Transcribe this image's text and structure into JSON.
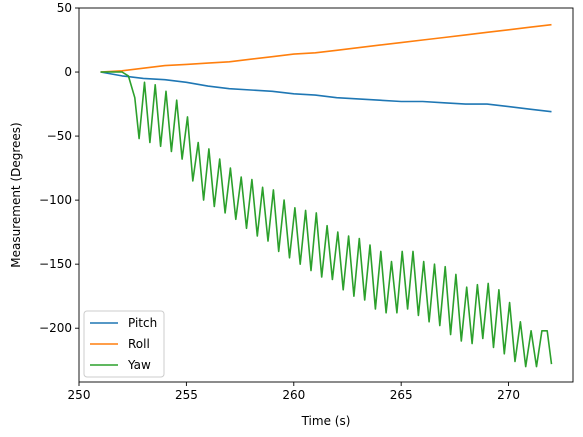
{
  "chart_data": {
    "type": "line",
    "xlabel": "Time (s)",
    "ylabel": "Measurement (Degrees)",
    "xlim": [
      250.0,
      273.0
    ],
    "ylim": [
      -242,
      50
    ],
    "xticks": [
      250,
      255,
      260,
      265,
      270
    ],
    "yticks": [
      50,
      0,
      -50,
      -100,
      -150,
      -200
    ],
    "legend_position": "lower-left",
    "grid": false,
    "series": [
      {
        "name": "Pitch",
        "color": "#1f77b4",
        "x": [
          251,
          252,
          253,
          254,
          255,
          256,
          257,
          258,
          259,
          260,
          261,
          262,
          263,
          264,
          265,
          266,
          267,
          268,
          269,
          270,
          271,
          272
        ],
        "y": [
          0,
          -3,
          -5,
          -6,
          -8,
          -11,
          -13,
          -14,
          -15,
          -17,
          -18,
          -20,
          -21,
          -22,
          -23,
          -23,
          -24,
          -25,
          -25,
          -27,
          -29,
          -31
        ]
      },
      {
        "name": "Roll",
        "color": "#ff7f0e",
        "x": [
          251,
          252,
          253,
          254,
          255,
          256,
          257,
          258,
          259,
          260,
          261,
          262,
          263,
          264,
          265,
          266,
          267,
          268,
          269,
          270,
          271,
          272
        ],
        "y": [
          0,
          1,
          3,
          5,
          6,
          7,
          8,
          10,
          12,
          14,
          15,
          17,
          19,
          21,
          23,
          25,
          27,
          29,
          31,
          33,
          35,
          37
        ]
      },
      {
        "name": "Yaw",
        "color": "#2ca02c",
        "x": [
          251,
          251.5,
          252,
          252.3,
          252.6,
          252.8,
          253.05,
          253.3,
          253.55,
          253.8,
          254.05,
          254.3,
          254.55,
          254.8,
          255.05,
          255.3,
          255.55,
          255.8,
          256.05,
          256.3,
          256.55,
          256.8,
          257.05,
          257.3,
          257.55,
          257.8,
          258.05,
          258.3,
          258.55,
          258.8,
          259.05,
          259.3,
          259.55,
          259.8,
          260.05,
          260.3,
          260.55,
          260.8,
          261.05,
          261.3,
          261.55,
          261.8,
          262.05,
          262.3,
          262.55,
          262.8,
          263.05,
          263.3,
          263.55,
          263.8,
          264.05,
          264.3,
          264.55,
          264.8,
          265.05,
          265.3,
          265.55,
          265.8,
          266.05,
          266.3,
          266.55,
          266.8,
          267.05,
          267.3,
          267.55,
          267.8,
          268.05,
          268.3,
          268.55,
          268.8,
          269.05,
          269.3,
          269.55,
          269.8,
          270.05,
          270.3,
          270.55,
          270.8,
          271.05,
          271.3,
          271.55,
          271.8,
          272
        ],
        "y": [
          0,
          0,
          0,
          -3,
          -20,
          -52,
          -8,
          -55,
          -10,
          -58,
          -15,
          -62,
          -22,
          -68,
          -35,
          -85,
          -55,
          -100,
          -60,
          -105,
          -68,
          -110,
          -75,
          -115,
          -82,
          -122,
          -84,
          -128,
          -90,
          -132,
          -92,
          -140,
          -100,
          -145,
          -106,
          -150,
          -108,
          -155,
          -110,
          -160,
          -120,
          -162,
          -125,
          -170,
          -128,
          -175,
          -130,
          -178,
          -135,
          -185,
          -140,
          -188,
          -148,
          -188,
          -140,
          -185,
          -140,
          -190,
          -148,
          -195,
          -150,
          -198,
          -152,
          -205,
          -158,
          -210,
          -168,
          -212,
          -166,
          -208,
          -165,
          -215,
          -170,
          -220,
          -180,
          -226,
          -195,
          -230,
          -202,
          -230,
          -202,
          -202,
          -228
        ]
      }
    ]
  }
}
